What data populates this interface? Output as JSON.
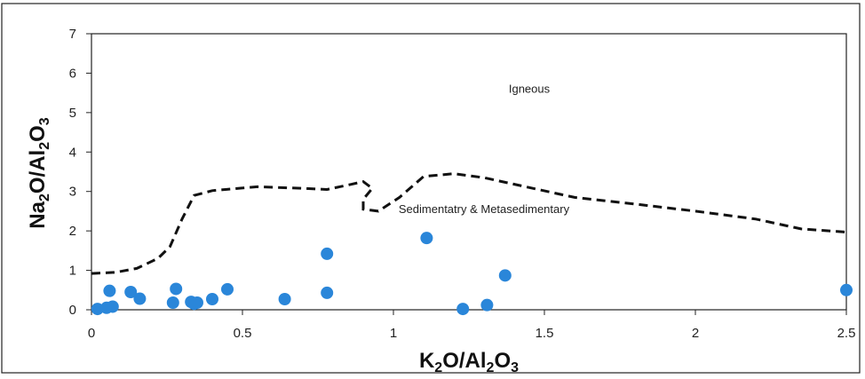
{
  "chart_data": {
    "type": "scatter",
    "title": "",
    "xlabel": "K2O/Al2O3",
    "ylabel": "Na2O/Al2O3",
    "xlim": [
      0,
      2.5
    ],
    "ylim": [
      0,
      7
    ],
    "xticks": [
      0,
      0.5,
      1,
      1.5,
      2,
      2.5
    ],
    "xtick_labels": [
      "0",
      "0.5",
      "1",
      "1.5",
      "2",
      "2.5"
    ],
    "yticks": [
      0,
      1,
      2,
      3,
      4,
      5,
      6,
      7
    ],
    "ytick_labels": [
      "0",
      "1",
      "2",
      "3",
      "4",
      "5",
      "6",
      "7"
    ],
    "grid": false,
    "marker_color": "#2a86d9",
    "points": [
      {
        "x": 0.02,
        "y": 0.02
      },
      {
        "x": 0.05,
        "y": 0.05
      },
      {
        "x": 0.06,
        "y": 0.48
      },
      {
        "x": 0.07,
        "y": 0.08
      },
      {
        "x": 0.13,
        "y": 0.45
      },
      {
        "x": 0.16,
        "y": 0.28
      },
      {
        "x": 0.27,
        "y": 0.18
      },
      {
        "x": 0.28,
        "y": 0.53
      },
      {
        "x": 0.33,
        "y": 0.2
      },
      {
        "x": 0.34,
        "y": 0.15
      },
      {
        "x": 0.35,
        "y": 0.18
      },
      {
        "x": 0.4,
        "y": 0.27
      },
      {
        "x": 0.45,
        "y": 0.52
      },
      {
        "x": 0.64,
        "y": 0.27
      },
      {
        "x": 0.78,
        "y": 1.42
      },
      {
        "x": 0.78,
        "y": 0.43
      },
      {
        "x": 1.11,
        "y": 1.82
      },
      {
        "x": 1.23,
        "y": 0.02
      },
      {
        "x": 1.31,
        "y": 0.12
      },
      {
        "x": 1.37,
        "y": 0.87
      },
      {
        "x": 2.5,
        "y": 0.5
      }
    ],
    "boundary": {
      "style": "dashed",
      "color": "#111111",
      "points": [
        [
          0,
          0.92
        ],
        [
          0.08,
          0.95
        ],
        [
          0.15,
          1.05
        ],
        [
          0.22,
          1.3
        ],
        [
          0.26,
          1.6
        ],
        [
          0.3,
          2.3
        ],
        [
          0.34,
          2.9
        ],
        [
          0.4,
          3.02
        ],
        [
          0.55,
          3.12
        ],
        [
          0.7,
          3.08
        ],
        [
          0.78,
          3.05
        ],
        [
          0.86,
          3.18
        ],
        [
          0.9,
          3.25
        ],
        [
          0.93,
          3.08
        ],
        [
          0.9,
          2.8
        ],
        [
          0.9,
          2.55
        ],
        [
          0.95,
          2.5
        ],
        [
          1.02,
          2.85
        ],
        [
          1.1,
          3.38
        ],
        [
          1.2,
          3.45
        ],
        [
          1.3,
          3.35
        ],
        [
          1.45,
          3.1
        ],
        [
          1.6,
          2.85
        ],
        [
          1.8,
          2.68
        ],
        [
          2.0,
          2.5
        ],
        [
          2.2,
          2.3
        ],
        [
          2.35,
          2.05
        ],
        [
          2.5,
          1.97
        ]
      ]
    },
    "annotations": [
      {
        "text": "Igneous",
        "x": 1.45,
        "y": 5.5
      },
      {
        "text": "Sedimentatry & Metasedimentary",
        "x": 1.3,
        "y": 2.45
      }
    ]
  }
}
